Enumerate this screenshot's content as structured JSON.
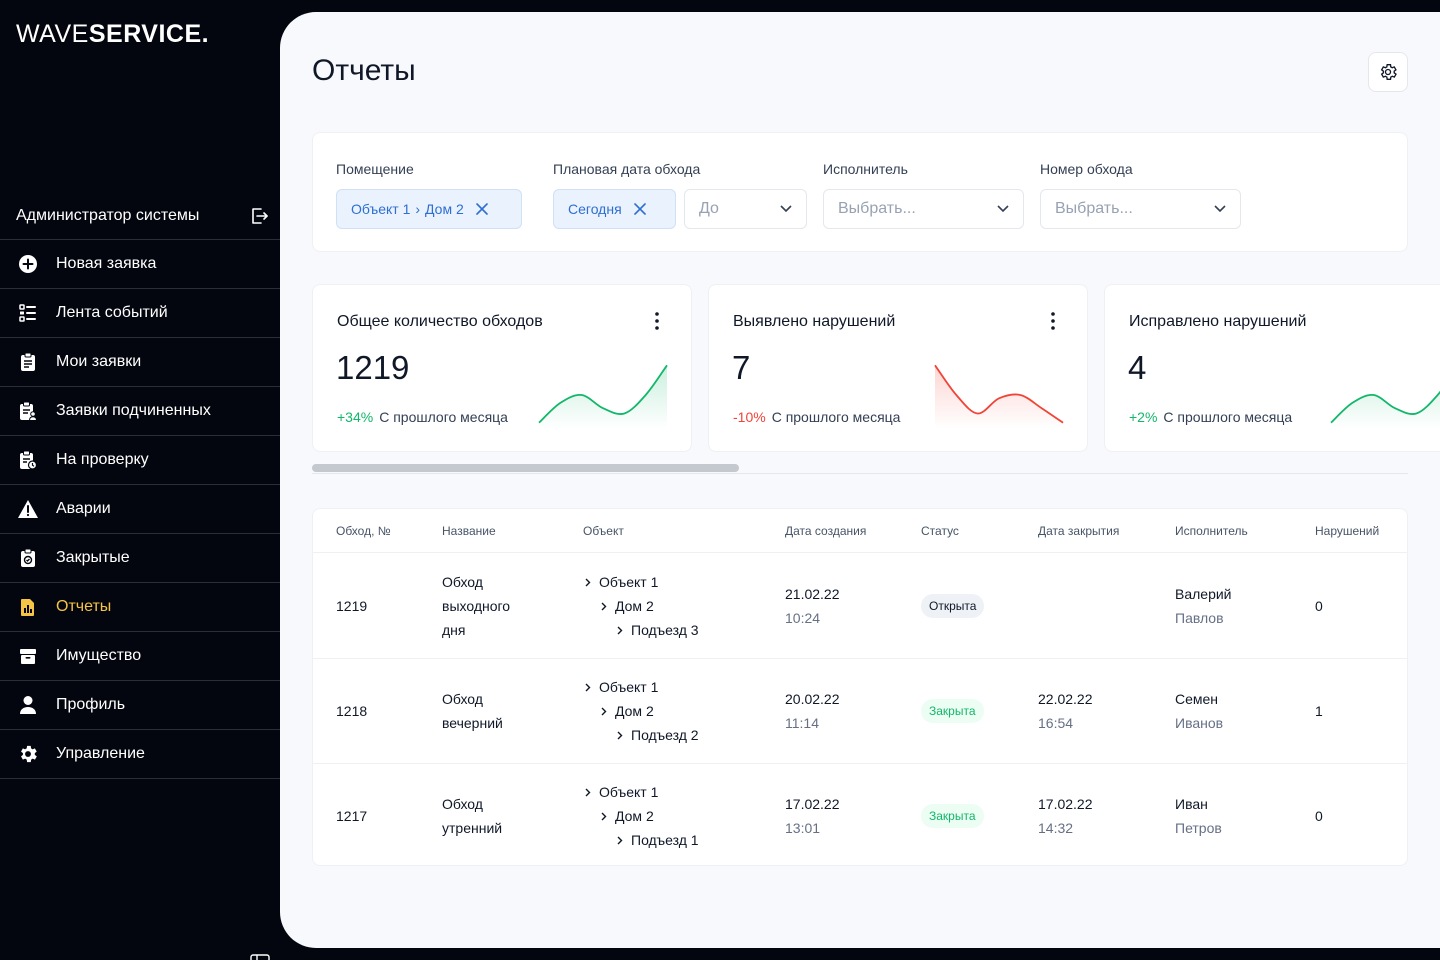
{
  "app": {
    "logo_light": "WAVE",
    "logo_bold": "SERVICE."
  },
  "sidebar": {
    "user_role": "Администратор системы",
    "items": [
      {
        "label": "Новая заявка",
        "icon": "plus-circle-icon"
      },
      {
        "label": "Лента событий",
        "icon": "list-icon"
      },
      {
        "label": "Мои заявки",
        "icon": "clipboard-icon"
      },
      {
        "label": "Заявки подчиненных",
        "icon": "clipboard-users-icon"
      },
      {
        "label": "На проверку",
        "icon": "clipboard-clock-icon"
      },
      {
        "label": "Аварии",
        "icon": "warning-icon"
      },
      {
        "label": "Закрытые",
        "icon": "clipboard-check-icon"
      },
      {
        "label": "Отчеты",
        "icon": "report-icon",
        "active": true
      },
      {
        "label": "Имущество",
        "icon": "box-icon"
      },
      {
        "label": "Профиль",
        "icon": "user-icon"
      },
      {
        "label": "Управление",
        "icon": "gear-icon"
      }
    ],
    "active_color": "#f6c445"
  },
  "page": {
    "title": "Отчеты"
  },
  "filters": {
    "premises": {
      "label": "Помещение",
      "chip_part1": "Объект 1",
      "chip_sep": "›",
      "chip_part2": "Дом 2"
    },
    "planned_date": {
      "label": "Плановая дата обхода",
      "chip": "Сегодня",
      "to_placeholder": "До"
    },
    "executor": {
      "label": "Исполнитель",
      "placeholder": "Выбрать..."
    },
    "round_number": {
      "label": "Номер обхода",
      "placeholder": "Выбрать..."
    }
  },
  "cards": [
    {
      "title": "Общее количество обходов",
      "value": "1219",
      "delta": "+34%",
      "trend": "up",
      "caption": "С прошлого месяца",
      "spark": [
        0.92,
        0.62,
        0.5,
        0.7,
        0.78,
        0.5,
        0.05
      ]
    },
    {
      "title": "Выявлено нарушений",
      "value": "7",
      "delta": "-10%",
      "trend": "down",
      "caption": "С прошлого месяца",
      "spark": [
        0.05,
        0.5,
        0.78,
        0.55,
        0.5,
        0.7,
        0.92
      ]
    },
    {
      "title": "Исправлено нарушений",
      "value": "4",
      "delta": "+2%",
      "trend": "up",
      "caption": "С прошлого месяца",
      "spark": [
        0.92,
        0.62,
        0.5,
        0.7,
        0.78,
        0.5,
        0.05
      ]
    }
  ],
  "colors": {
    "up": "#12b76a",
    "down": "#f04438"
  },
  "table": {
    "headers": [
      "Обход, №",
      "Название",
      "Объект",
      "Дата создания",
      "Статус",
      "Дата закрытия",
      "Исполнитель",
      "Нарушений"
    ],
    "rows": [
      {
        "id": "1219",
        "name1": "Обход",
        "name2": "выходного",
        "name3": "дня",
        "obj1": "Объект 1",
        "obj2": "Дом 2",
        "obj3": "Подъезд 3",
        "created_date": "21.02.22",
        "created_time": "10:24",
        "status": "Открыта",
        "status_type": "open",
        "closed_date": "",
        "closed_time": "",
        "exec_first": "Валерий",
        "exec_last": "Павлов",
        "violations": "0"
      },
      {
        "id": "1218",
        "name1": "Обход",
        "name2": "вечерний",
        "name3": "",
        "obj1": "Объект 1",
        "obj2": "Дом 2",
        "obj3": "Подъезд 2",
        "created_date": "20.02.22",
        "created_time": "11:14",
        "status": "Закрыта",
        "status_type": "closed",
        "closed_date": "22.02.22",
        "closed_time": "16:54",
        "exec_first": "Семен",
        "exec_last": "Иванов",
        "violations": "1"
      },
      {
        "id": "1217",
        "name1": "Обход",
        "name2": "утренний",
        "name3": "",
        "obj1": "Объект 1",
        "obj2": "Дом 2",
        "obj3": "Подъезд 1",
        "created_date": "17.02.22",
        "created_time": "13:01",
        "status": "Закрыта",
        "status_type": "closed",
        "closed_date": "17.02.22",
        "closed_time": "14:32",
        "exec_first": "Иван",
        "exec_last": "Петров",
        "violations": "0"
      }
    ]
  }
}
